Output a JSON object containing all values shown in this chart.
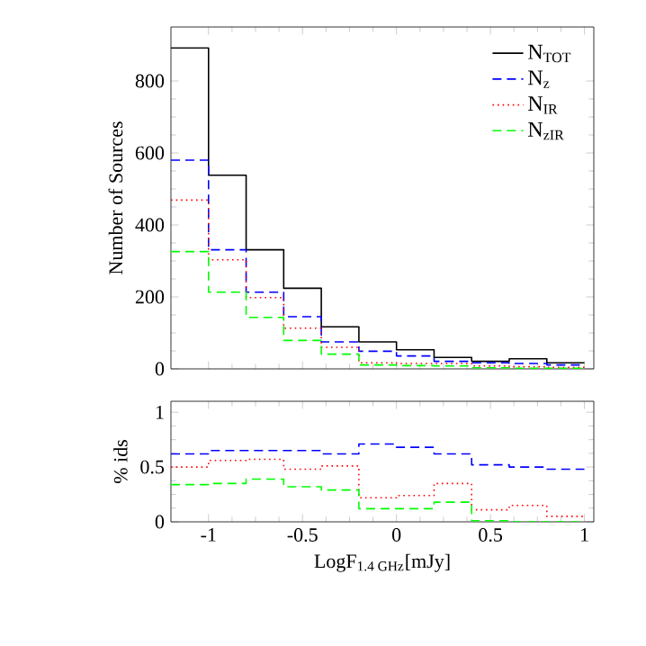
{
  "chart_data": [
    {
      "type": "histogram",
      "ylabel": "Number of Sources",
      "bins": [
        -1.2,
        -1.0,
        -0.8,
        -0.6,
        -0.4,
        -0.2,
        0.0,
        0.2,
        0.4,
        0.6,
        0.8,
        1.0
      ],
      "xlim": [
        -1.2,
        1.05
      ],
      "xticks": [
        -1,
        -0.5,
        0,
        0.5,
        1
      ],
      "ylim": [
        0,
        950
      ],
      "yticks": [
        0,
        200,
        400,
        600,
        800
      ],
      "tick_labels": "y",
      "legend": "top right",
      "series": [
        {
          "name": "N$_{TOT}$",
          "color": "#000000",
          "line_style": "solid",
          "values": [
            892,
            538,
            331,
            224,
            117,
            75,
            53,
            32,
            21,
            28,
            17
          ]
        },
        {
          "name": "N$_{z}$",
          "color": "#0000ff",
          "line_style": "dashed",
          "values": [
            580,
            331,
            213,
            145,
            75,
            49,
            36,
            21,
            17,
            15,
            11
          ]
        },
        {
          "name": "N$_{IR}$",
          "color": "#ff0000",
          "line_style": "dotted",
          "values": [
            469,
            303,
            198,
            113,
            60,
            17,
            15,
            15,
            8,
            6,
            4
          ]
        },
        {
          "name": "N$_{zIR}$",
          "color": "#00ff00",
          "line_style": "dashed",
          "values": [
            326,
            213,
            143,
            79,
            41,
            11,
            9,
            8,
            3,
            2,
            2
          ]
        }
      ]
    },
    {
      "type": "histogram",
      "xlabel": "LogF$_{1.4 GHz}$[mJy]",
      "ylabel": "% ids",
      "bins": [
        -1.2,
        -1.0,
        -0.8,
        -0.6,
        -0.4,
        -0.2,
        0.0,
        0.2,
        0.4,
        0.6,
        0.8,
        1.0
      ],
      "xlim": [
        -1.2,
        1.05
      ],
      "xticks": [
        -1,
        -0.5,
        0,
        0.5,
        1
      ],
      "ylim": [
        0,
        1.1
      ],
      "yticks": [
        0,
        0.5,
        1
      ],
      "series": [
        {
          "color": "#0000ff",
          "line_style": "dashed",
          "values": [
            0.62,
            0.65,
            0.65,
            0.65,
            0.62,
            0.71,
            0.68,
            0.62,
            0.52,
            0.5,
            0.48
          ]
        },
        {
          "color": "#ff0000",
          "line_style": "dotted",
          "values": [
            0.5,
            0.56,
            0.57,
            0.48,
            0.51,
            0.22,
            0.24,
            0.35,
            0.11,
            0.15,
            0.05
          ]
        },
        {
          "color": "#00ff00",
          "line_style": "dashed",
          "values": [
            0.34,
            0.35,
            0.39,
            0.32,
            0.29,
            0.12,
            0.12,
            0.18,
            0.01,
            0,
            0
          ]
        }
      ]
    }
  ]
}
